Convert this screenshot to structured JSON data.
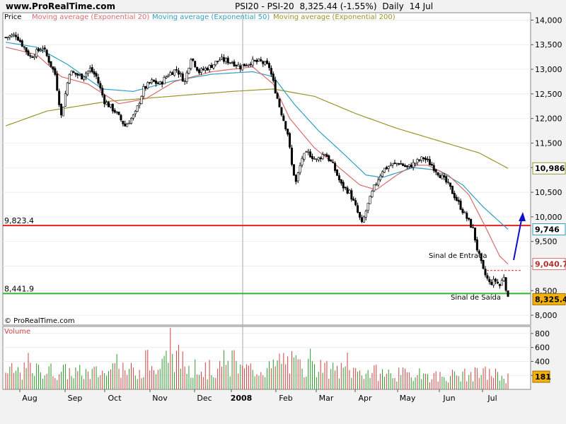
{
  "header": {
    "site": "www.ProRealTime.com",
    "instrument": "PSI20 - PSI-20",
    "last": "8,325.44 (-1.55%)",
    "period": "Daily",
    "date": "14 Jul"
  },
  "colors": {
    "ema20": "#d86b6b",
    "ema50": "#2f9fc0",
    "ema200": "#9c9428",
    "hline_red": "#e82020",
    "hline_green": "#2db82d",
    "arrow": "#1010c8",
    "vol_up": "#2a9a2a",
    "vol_down": "#d04040"
  },
  "chart_data": [
    {
      "type": "candlestick",
      "legend": [
        "Price",
        "Moving average (Exponential 20)",
        "Moving average (Exponential 50)",
        "Moving average (Exponential 200)"
      ],
      "ylim": [
        7800,
        14150
      ],
      "y_ticks": [
        "14,000",
        "13,500",
        "13,000",
        "12,500",
        "12,000",
        "11,500",
        "11,000",
        "10,500",
        "10,000",
        "9,500",
        "9,000",
        "8,500",
        "8,000"
      ],
      "y_tick_values": [
        14000,
        13500,
        13000,
        12500,
        12000,
        11500,
        11000,
        10500,
        10000,
        9500,
        9000,
        8500,
        8000
      ],
      "x_months": [
        "Aug",
        "Sep",
        "Oct",
        "Nov",
        "Dec",
        "2008",
        "Feb",
        "Mar",
        "Apr",
        "May",
        "Jun",
        "Jul"
      ],
      "price_path": [
        [
          0,
          13650
        ],
        [
          5,
          13700
        ],
        [
          12,
          13250
        ],
        [
          18,
          13450
        ],
        [
          24,
          12900
        ],
        [
          27,
          12050
        ],
        [
          31,
          12950
        ],
        [
          37,
          12850
        ],
        [
          41,
          13000
        ],
        [
          44,
          12850
        ],
        [
          48,
          12350
        ],
        [
          53,
          12150
        ],
        [
          58,
          11850
        ],
        [
          63,
          12100
        ],
        [
          67,
          12600
        ],
        [
          71,
          12750
        ],
        [
          75,
          12700
        ],
        [
          79,
          12900
        ],
        [
          83,
          13000
        ],
        [
          87,
          12750
        ],
        [
          90,
          13250
        ],
        [
          94,
          12950
        ],
        [
          99,
          13050
        ],
        [
          104,
          13200
        ],
        [
          110,
          13150
        ],
        [
          114,
          13050
        ],
        [
          119,
          13150
        ],
        [
          124,
          13150
        ],
        [
          128,
          13050
        ],
        [
          133,
          12250
        ],
        [
          137,
          11700
        ],
        [
          139,
          11050
        ],
        [
          141,
          10700
        ],
        [
          144,
          11200
        ],
        [
          147,
          11300
        ],
        [
          151,
          11150
        ],
        [
          155,
          11300
        ],
        [
          159,
          11050
        ],
        [
          163,
          10650
        ],
        [
          167,
          10500
        ],
        [
          170,
          10200
        ],
        [
          173,
          9850
        ],
        [
          176,
          10250
        ],
        [
          179,
          10600
        ],
        [
          183,
          10950
        ],
        [
          187,
          11050
        ],
        [
          191,
          11100
        ],
        [
          195,
          11000
        ],
        [
          199,
          11100
        ],
        [
          203,
          11200
        ],
        [
          207,
          11050
        ],
        [
          211,
          10850
        ],
        [
          215,
          10650
        ],
        [
          219,
          10350
        ],
        [
          223,
          10050
        ],
        [
          227,
          9750
        ],
        [
          229,
          9350
        ],
        [
          232,
          8900
        ],
        [
          235,
          8650
        ],
        [
          238,
          8700
        ],
        [
          240,
          8600
        ],
        [
          242,
          8800
        ],
        [
          244,
          8325
        ]
      ],
      "series_ema20_path": [
        [
          0,
          13450
        ],
        [
          15,
          13300
        ],
        [
          27,
          12850
        ],
        [
          40,
          12700
        ],
        [
          55,
          12300
        ],
        [
          68,
          12400
        ],
        [
          82,
          12750
        ],
        [
          100,
          12950
        ],
        [
          120,
          13050
        ],
        [
          130,
          12700
        ],
        [
          138,
          12000
        ],
        [
          150,
          11400
        ],
        [
          162,
          11000
        ],
        [
          172,
          10650
        ],
        [
          180,
          10550
        ],
        [
          190,
          10850
        ],
        [
          198,
          11050
        ],
        [
          205,
          11050
        ],
        [
          215,
          10850
        ],
        [
          225,
          10450
        ],
        [
          233,
          9800
        ],
        [
          240,
          9200
        ],
        [
          244,
          9040.7
        ]
      ],
      "series_ema50_path": [
        [
          0,
          13550
        ],
        [
          15,
          13450
        ],
        [
          30,
          13100
        ],
        [
          47,
          12600
        ],
        [
          62,
          12550
        ],
        [
          80,
          12750
        ],
        [
          100,
          12900
        ],
        [
          120,
          12950
        ],
        [
          130,
          12850
        ],
        [
          140,
          12300
        ],
        [
          152,
          11750
        ],
        [
          165,
          11250
        ],
        [
          175,
          10850
        ],
        [
          183,
          10800
        ],
        [
          198,
          11000
        ],
        [
          210,
          10950
        ],
        [
          222,
          10650
        ],
        [
          232,
          10200
        ],
        [
          244,
          9746
        ]
      ],
      "series_ema200_path": [
        [
          0,
          11850
        ],
        [
          20,
          12150
        ],
        [
          50,
          12350
        ],
        [
          80,
          12450
        ],
        [
          110,
          12550
        ],
        [
          130,
          12600
        ],
        [
          150,
          12450
        ],
        [
          170,
          12100
        ],
        [
          190,
          11800
        ],
        [
          210,
          11550
        ],
        [
          230,
          11300
        ],
        [
          244,
          10986
        ]
      ],
      "last_price": "8,325.44",
      "ema20_label": "9,040.7",
      "ema50_label": "9,746",
      "ema200_label": "10,986",
      "levels": [
        {
          "value": 9823.4,
          "label": "9,823.4"
        },
        {
          "value": 8441.9,
          "label": "8,441.9"
        }
      ],
      "annotations": [
        "Sinal de Entrada",
        "Sinal de Saída"
      ],
      "watermark": "© ProRealTime.com"
    },
    {
      "type": "bar",
      "title": "Volume",
      "ylim": [
        0,
        900
      ],
      "y_ticks": [
        "800",
        "600",
        "400",
        "200"
      ],
      "y_tick_values": [
        800,
        600,
        400,
        200
      ],
      "last_volume": "181",
      "volume_path": [
        [
          0,
          280
        ],
        [
          20,
          300
        ],
        [
          40,
          260
        ],
        [
          60,
          290
        ],
        [
          75,
          330
        ],
        [
          80,
          600
        ],
        [
          90,
          320
        ],
        [
          110,
          310
        ],
        [
          130,
          340
        ],
        [
          134,
          480
        ],
        [
          145,
          330
        ],
        [
          160,
          300
        ],
        [
          175,
          280
        ],
        [
          190,
          240
        ],
        [
          210,
          210
        ],
        [
          225,
          230
        ],
        [
          235,
          260
        ],
        [
          244,
          181
        ]
      ]
    }
  ]
}
